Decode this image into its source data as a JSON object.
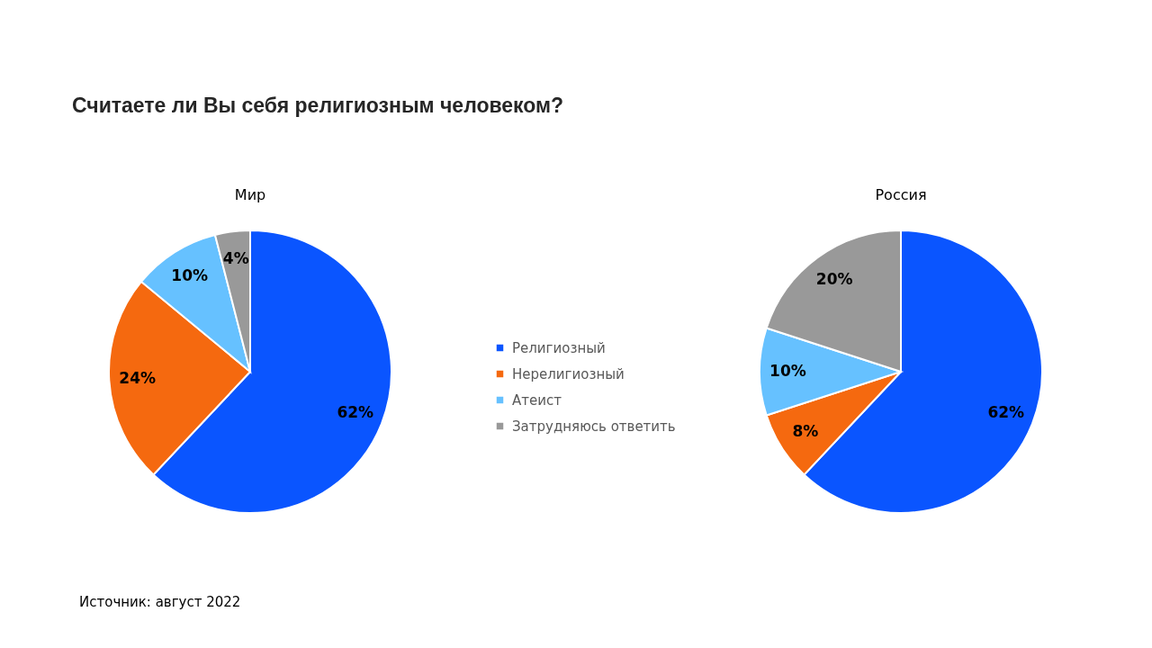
{
  "chart_data": [
    {
      "type": "other",
      "title": "Считаете ли Вы себя религиозным человеком?",
      "annotations": [
        "Источник: август 2022"
      ]
    },
    {
      "type": "pie",
      "title": "Мир",
      "categories": [
        "Религиозный",
        "Нерелигиозный",
        "Атеист",
        "Затрудняюсь ответить"
      ],
      "values": [
        62,
        24,
        10,
        4
      ],
      "colors": [
        "#0a55ff",
        "#f5690f",
        "#66c1ff",
        "#999999"
      ],
      "value_labels": [
        "62%",
        "24%",
        "10%",
        "4%"
      ],
      "legend": "right"
    },
    {
      "type": "pie",
      "title": "Россия",
      "categories": [
        null,
        null,
        null,
        null
      ],
      "values": [
        62,
        8,
        10,
        20
      ],
      "colors": [
        "#0a55ff",
        "#f5690f",
        "#66c1ff",
        "#999999"
      ],
      "value_labels": [
        "62%",
        "8%",
        "10%",
        "20%"
      ]
    }
  ]
}
